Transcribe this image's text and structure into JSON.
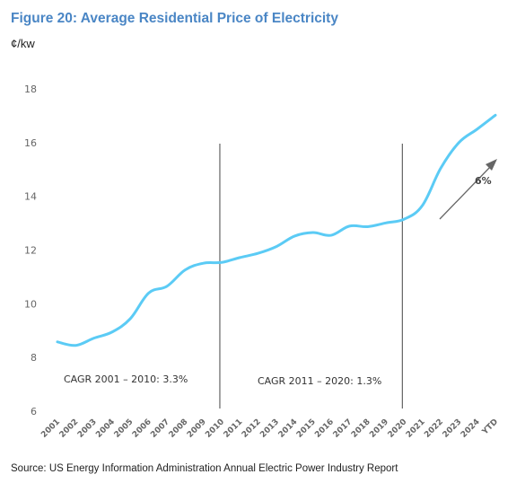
{
  "title": "Figure 20: Average Residential Price of Electricity",
  "unit_label": "¢/kw",
  "source": "Source: US Energy Information Administration Annual Electric Power Industry Report",
  "colors": {
    "title": "#4a86c5",
    "line": "#5bcbf5",
    "divider": "#444444",
    "arrow": "#666666"
  },
  "chart_data": {
    "type": "line",
    "title": "Figure 20: Average Residential Price of Electricity",
    "ylabel": "¢/kw",
    "xlabel": "",
    "categories": [
      "2001",
      "2002",
      "2003",
      "2004",
      "2005",
      "2006",
      "2007",
      "2008",
      "2009",
      "2010",
      "2011",
      "2012",
      "2013",
      "2014",
      "2015",
      "2016",
      "2017",
      "2018",
      "2019",
      "2020",
      "2021",
      "2022",
      "2023",
      "2024",
      "YTD"
    ],
    "values": [
      8.58,
      8.45,
      8.72,
      8.95,
      9.45,
      10.4,
      10.65,
      11.26,
      11.51,
      11.54,
      11.72,
      11.88,
      12.13,
      12.52,
      12.65,
      12.55,
      12.89,
      12.87,
      13.01,
      13.15,
      13.66,
      15.04,
      16.0,
      16.5,
      17.02
    ],
    "ylim": [
      6,
      18
    ],
    "yticks": [
      6,
      8,
      10,
      12,
      14,
      16,
      18
    ],
    "grid": false,
    "legend": "none",
    "annotations": {
      "cagr1": "CAGR 2001 – 2010: 3.3%",
      "cagr2": "CAGR 2011 – 2020: 1.3%",
      "growth": "6%"
    },
    "dividers_at": [
      "2010",
      "2020"
    ]
  }
}
